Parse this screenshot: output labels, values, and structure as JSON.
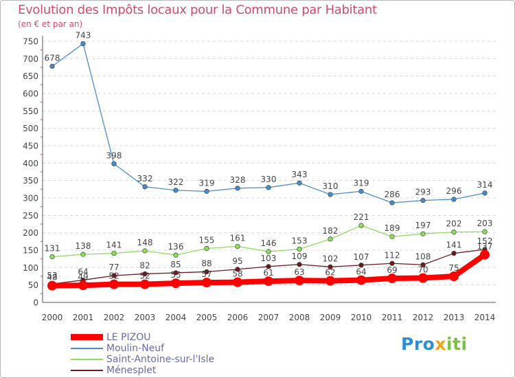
{
  "title": "Evolution des Impôts locaux pour la Commune par Habitant",
  "subtitle": "(en € et par an)",
  "brand": {
    "part1": "Pro",
    "part2": "x",
    "part3": "iti"
  },
  "colors": {
    "title": "#d4486e",
    "LE PIZOU": "#ff0000",
    "Moulin-Neuf": "#4a8cc6",
    "Saint-Antoine-sur-l'Isle": "#8fdc5c",
    "Ménesplet": "#6b1a1f"
  },
  "chart_data": {
    "type": "line",
    "title": "Evolution des Impôts locaux pour la Commune par Habitant",
    "ylabel": "(en € et par an)",
    "xlabel": "",
    "ylim": [
      0,
      750
    ],
    "yticks": [
      0,
      50,
      100,
      150,
      200,
      250,
      300,
      350,
      400,
      450,
      500,
      550,
      600,
      650,
      700,
      750
    ],
    "categories": [
      "2000",
      "2001",
      "2002",
      "2003",
      "2004",
      "2005",
      "2006",
      "2007",
      "2008",
      "2009",
      "2010",
      "2011",
      "2012",
      "2013",
      "2014"
    ],
    "grid": true,
    "series": [
      {
        "name": "LE PIZOU",
        "values": [
          48,
          49,
          52,
          52,
          55,
          57,
          58,
          61,
          63,
          62,
          64,
          69,
          70,
          75,
          137
        ]
      },
      {
        "name": "Moulin-Neuf",
        "values": [
          678,
          743,
          398,
          332,
          322,
          319,
          328,
          330,
          343,
          310,
          319,
          286,
          293,
          296,
          314
        ]
      },
      {
        "name": "Saint-Antoine-sur-l'Isle",
        "values": [
          131,
          138,
          141,
          148,
          136,
          155,
          161,
          146,
          153,
          182,
          221,
          189,
          197,
          202,
          203
        ]
      },
      {
        "name": "Ménesplet",
        "values": [
          53,
          64,
          77,
          82,
          85,
          88,
          95,
          103,
          109,
          102,
          107,
          112,
          108,
          141,
          152
        ]
      }
    ]
  }
}
